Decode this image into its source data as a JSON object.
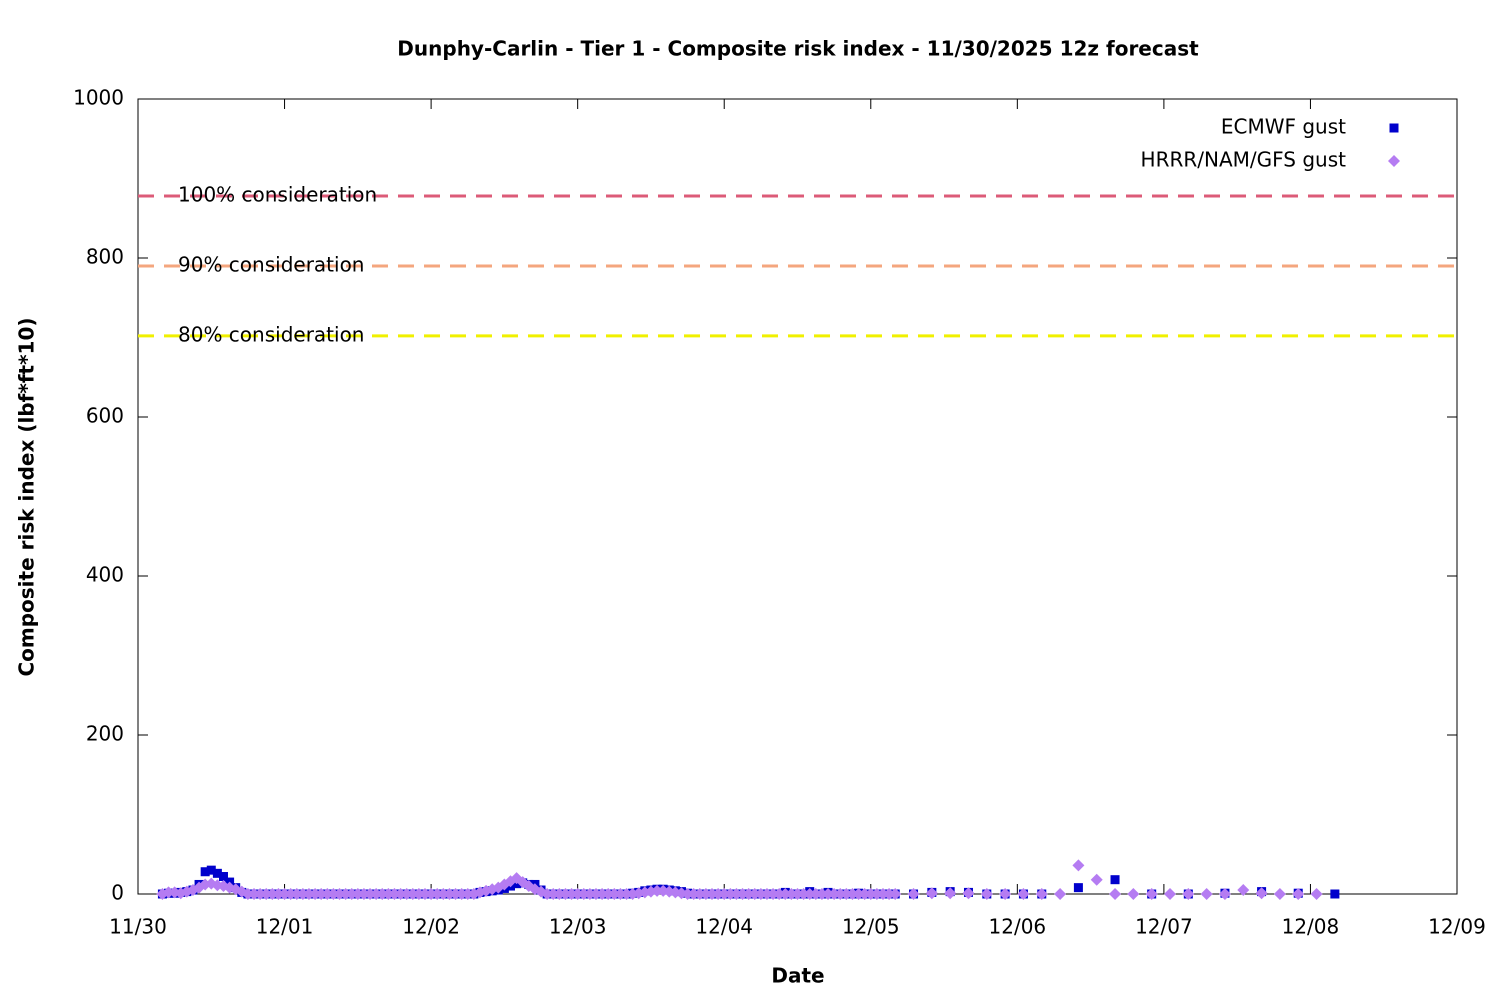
{
  "chart_data": {
    "type": "scatter",
    "title": "Dunphy-Carlin - Tier 1 - Composite risk index - 11/30/2025 12z forecast",
    "xlabel": "Date",
    "ylabel": "Composite risk index (lbf*ft*10)",
    "xlim": [
      0,
      216
    ],
    "xticks": [
      {
        "value": 0,
        "label": "11/30"
      },
      {
        "value": 24,
        "label": "12/01"
      },
      {
        "value": 48,
        "label": "12/02"
      },
      {
        "value": 72,
        "label": "12/03"
      },
      {
        "value": 96,
        "label": "12/04"
      },
      {
        "value": 120,
        "label": "12/05"
      },
      {
        "value": 144,
        "label": "12/06"
      },
      {
        "value": 168,
        "label": "12/07"
      },
      {
        "value": 192,
        "label": "12/08"
      },
      {
        "value": 216,
        "label": "12/09"
      }
    ],
    "ylim": [
      0,
      1000
    ],
    "yticks": [
      0,
      200,
      400,
      600,
      800,
      1000
    ],
    "legend": "top-right",
    "reference_lines": [
      {
        "label": "100% consideration",
        "value": 878,
        "color": "#dc5b78"
      },
      {
        "label": "90% consideration",
        "value": 790,
        "color": "#f4a67e"
      },
      {
        "label": "80% consideration",
        "value": 702,
        "color": "#f0f000"
      }
    ],
    "x": [
      4,
      5,
      6,
      7,
      8,
      9,
      10,
      11,
      12,
      13,
      14,
      15,
      16,
      17,
      18,
      19,
      20,
      21,
      22,
      23,
      24,
      25,
      26,
      27,
      28,
      29,
      30,
      31,
      32,
      33,
      34,
      35,
      36,
      37,
      38,
      39,
      40,
      41,
      42,
      43,
      44,
      45,
      46,
      47,
      48,
      49,
      50,
      51,
      52,
      53,
      54,
      55,
      56,
      57,
      58,
      59,
      60,
      61,
      62,
      63,
      64,
      65,
      66,
      67,
      68,
      69,
      70,
      71,
      72,
      73,
      74,
      75,
      76,
      77,
      78,
      79,
      80,
      81,
      82,
      83,
      84,
      85,
      86,
      87,
      88,
      89,
      90,
      91,
      92,
      93,
      94,
      95,
      96,
      97,
      98,
      99,
      100,
      101,
      102,
      103,
      104,
      105,
      106,
      107,
      108,
      109,
      110,
      111,
      112,
      113,
      114,
      115,
      116,
      117,
      118,
      119,
      120,
      121,
      122,
      123,
      124,
      127,
      130,
      133,
      136,
      139,
      142,
      145,
      148,
      151,
      154,
      157,
      160,
      163,
      166,
      169,
      172,
      175,
      178,
      181,
      184,
      187,
      190,
      193,
      196
    ],
    "series": [
      {
        "name": "ECMWF gust",
        "color": "#0000cc",
        "marker": "square",
        "values": [
          0,
          1,
          1,
          2,
          3,
          5,
          12,
          28,
          30,
          26,
          22,
          15,
          8,
          2,
          0,
          0,
          0,
          0,
          0,
          0,
          0,
          0,
          0,
          0,
          0,
          0,
          0,
          0,
          0,
          0,
          0,
          0,
          0,
          0,
          0,
          0,
          0,
          0,
          0,
          0,
          0,
          0,
          0,
          0,
          0,
          0,
          0,
          0,
          0,
          0,
          0,
          0,
          2,
          3,
          4,
          5,
          7,
          10,
          13,
          14,
          12,
          12,
          5,
          0,
          0,
          0,
          0,
          0,
          0,
          0,
          0,
          0,
          0,
          0,
          0,
          0,
          0,
          1,
          2,
          4,
          5,
          6,
          6,
          5,
          4,
          3,
          1,
          0,
          0,
          0,
          0,
          0,
          0,
          0,
          0,
          0,
          0,
          0,
          0,
          0,
          0,
          0,
          2,
          0,
          0,
          0,
          3,
          0,
          0,
          2,
          0,
          0,
          0,
          0,
          1,
          0,
          0,
          0,
          0,
          0,
          0,
          0,
          2,
          3,
          2,
          0,
          0,
          0,
          0,
          null,
          8,
          null,
          18,
          null,
          0,
          null,
          0,
          null,
          1,
          null,
          3,
          null,
          1,
          null,
          0
        ]
      },
      {
        "name": "HRRR/NAM/GFS gust",
        "color": "#b57cf2",
        "marker": "diamond",
        "values": [
          0,
          2,
          2,
          1,
          3,
          5,
          8,
          12,
          13,
          11,
          10,
          8,
          6,
          3,
          0,
          0,
          0,
          0,
          0,
          0,
          0,
          0,
          0,
          0,
          0,
          0,
          0,
          0,
          0,
          0,
          0,
          0,
          0,
          0,
          0,
          0,
          0,
          0,
          0,
          0,
          0,
          0,
          0,
          0,
          0,
          0,
          0,
          0,
          0,
          0,
          0,
          0,
          2,
          4,
          6,
          8,
          12,
          16,
          20,
          15,
          10,
          6,
          3,
          0,
          0,
          0,
          0,
          0,
          0,
          0,
          0,
          0,
          0,
          0,
          0,
          0,
          0,
          0,
          1,
          2,
          3,
          4,
          4,
          3,
          2,
          1,
          0,
          0,
          0,
          0,
          0,
          0,
          0,
          0,
          0,
          0,
          0,
          0,
          0,
          0,
          0,
          0,
          0,
          0,
          0,
          0,
          0,
          0,
          0,
          0,
          0,
          0,
          0,
          0,
          0,
          0,
          0,
          0,
          0,
          0,
          0,
          0,
          1,
          1,
          1,
          0,
          0,
          0,
          0,
          0,
          36,
          18,
          0,
          0,
          0,
          0,
          0,
          0,
          0,
          5,
          1,
          0,
          0,
          0,
          null
        ]
      }
    ]
  }
}
